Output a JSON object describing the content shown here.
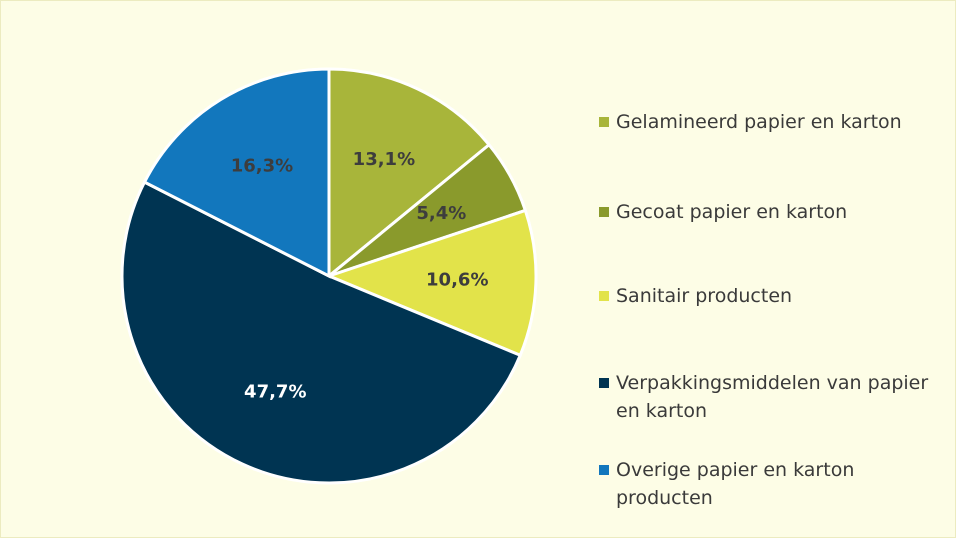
{
  "chart_data": {
    "type": "pie",
    "categories": [
      "Gelamineerd papier en karton",
      "Gecoat papier en karton",
      "Sanitair producten",
      "Verpakkingsmiddelen van papier en karton",
      "Overige papier en karton producten"
    ],
    "values": [
      13.1,
      5.4,
      10.6,
      47.7,
      16.3
    ],
    "value_labels": [
      "13,1%",
      "5,4%",
      "10,6%",
      "47,7%",
      "16,3%"
    ],
    "colors": [
      "#a8b53a",
      "#8a9a2c",
      "#e2e34a",
      "#003452",
      "#1277bd"
    ],
    "legend": "right"
  }
}
